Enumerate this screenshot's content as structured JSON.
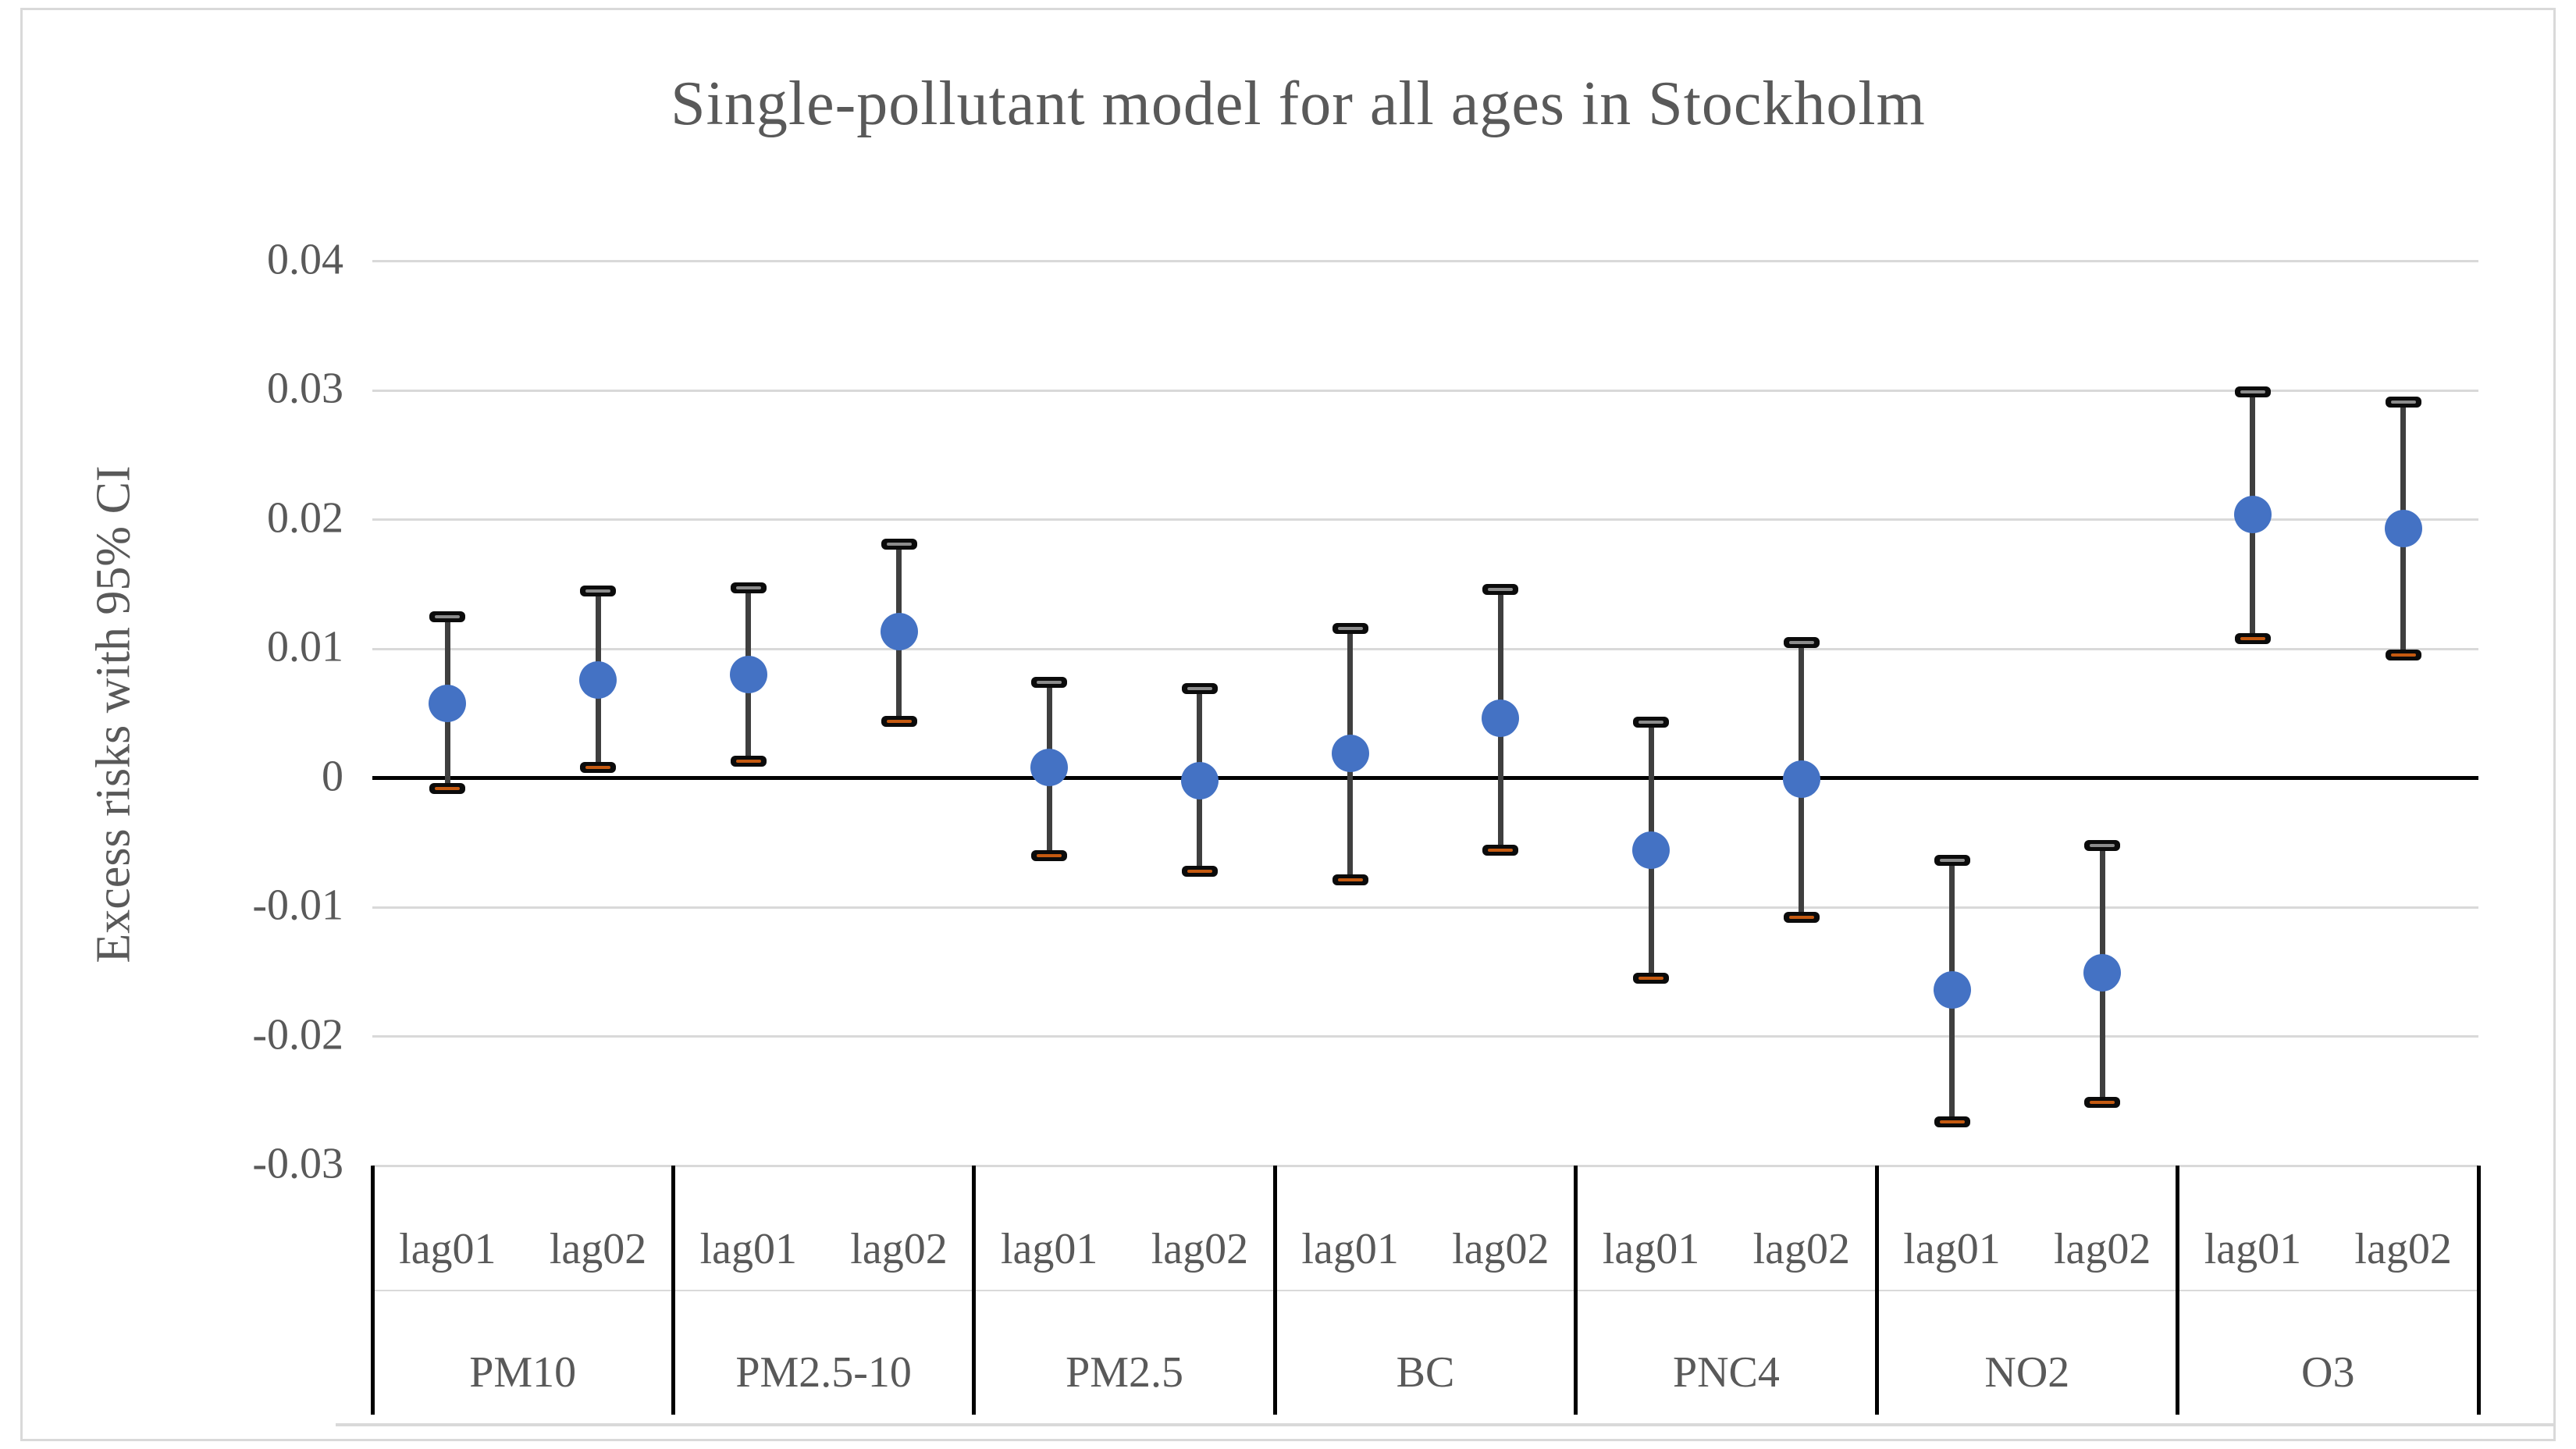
{
  "title": {
    "text": "Single-pollutant model for all ages in Stockholm"
  },
  "y_axis": {
    "title": "Excess risks with 95% CI",
    "tick_labels": [
      "0.04",
      "0.03",
      "0.02",
      "0.01",
      "0",
      "-0.01",
      "-0.02",
      "-0.03"
    ],
    "tick_values": [
      0.04,
      0.03,
      0.02,
      0.01,
      0,
      -0.01,
      -0.02,
      -0.03
    ]
  },
  "x_axis": {
    "lag_labels": [
      "lag01",
      "lag02"
    ],
    "group_labels": [
      "PM10",
      "PM2.5-10",
      "PM2.5",
      "BC",
      "PNC4",
      "NO2",
      "O3"
    ]
  },
  "chart_data": {
    "type": "scatter",
    "title": "Single-pollutant model for all ages in Stockholm",
    "ylabel": "Excess risks with 95% CI",
    "ylim": [
      -0.03,
      0.04
    ],
    "grid": "horizontal",
    "gridline_values": [
      0.04,
      0.03,
      0.02,
      0.01,
      -0.01,
      -0.02,
      -0.03
    ],
    "zero_line": 0,
    "legend": "none",
    "groups": [
      "PM10",
      "PM2.5-10",
      "PM2.5",
      "BC",
      "PNC4",
      "NO2",
      "O3"
    ],
    "lags": [
      "lag01",
      "lag02"
    ],
    "series": [
      {
        "name": "Excess risk with 95% CI",
        "points": [
          {
            "pollutant": "PM10",
            "lag": "lag01",
            "estimate": 0.0058,
            "ci_low": -0.0008,
            "ci_high": 0.0125
          },
          {
            "pollutant": "PM10",
            "lag": "lag02",
            "estimate": 0.0076,
            "ci_low": 0.0008,
            "ci_high": 0.0145
          },
          {
            "pollutant": "PM2.5-10",
            "lag": "lag01",
            "estimate": 0.008,
            "ci_low": 0.0013,
            "ci_high": 0.0147
          },
          {
            "pollutant": "PM2.5-10",
            "lag": "lag02",
            "estimate": 0.0113,
            "ci_low": 0.0044,
            "ci_high": 0.0181
          },
          {
            "pollutant": "PM2.5",
            "lag": "lag01",
            "estimate": 0.0008,
            "ci_low": -0.006,
            "ci_high": 0.0074
          },
          {
            "pollutant": "PM2.5",
            "lag": "lag02",
            "estimate": -0.0002,
            "ci_low": -0.0072,
            "ci_high": 0.0069
          },
          {
            "pollutant": "BC",
            "lag": "lag01",
            "estimate": 0.0019,
            "ci_low": -0.0079,
            "ci_high": 0.0116
          },
          {
            "pollutant": "BC",
            "lag": "lag02",
            "estimate": 0.0046,
            "ci_low": -0.0056,
            "ci_high": 0.0146
          },
          {
            "pollutant": "PNC4",
            "lag": "lag01",
            "estimate": -0.0056,
            "ci_low": -0.0155,
            "ci_high": 0.0043
          },
          {
            "pollutant": "PNC4",
            "lag": "lag02",
            "estimate": -0.0001,
            "ci_low": -0.0108,
            "ci_high": 0.0105
          },
          {
            "pollutant": "NO2",
            "lag": "lag01",
            "estimate": -0.0164,
            "ci_low": -0.0266,
            "ci_high": -0.0064
          },
          {
            "pollutant": "NO2",
            "lag": "lag02",
            "estimate": -0.0151,
            "ci_low": -0.0251,
            "ci_high": -0.0052
          },
          {
            "pollutant": "O3",
            "lag": "lag01",
            "estimate": 0.0204,
            "ci_low": 0.0108,
            "ci_high": 0.0299
          },
          {
            "pollutant": "O3",
            "lag": "lag02",
            "estimate": 0.0193,
            "ci_low": 0.0095,
            "ci_high": 0.0291
          }
        ]
      }
    ]
  },
  "style": {
    "marker_color": "#4472C4",
    "error_line_color": "#3F3F3F",
    "cap_fill": "#0B0B0B",
    "cap_top_stripe": "#8C8C8C",
    "cap_bottom_stripe": "#C55A11",
    "gridline_color": "#D9D9D9",
    "zero_line_color": "#000000",
    "text_color": "#595959",
    "frame_color": "#D9D9D9",
    "background": "#FFFFFF"
  }
}
